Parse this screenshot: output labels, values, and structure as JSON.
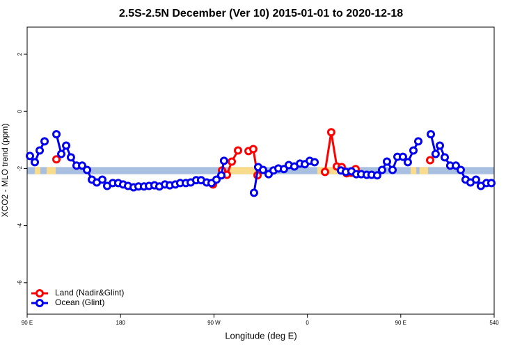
{
  "chart_data": {
    "type": "line",
    "title": "2.5S-2.5N December (Ver 10)   2015-01-01 to 2020-12-18",
    "xlabel": "Longitude (deg E)",
    "ylabel": "XCO2 - MLO trend (ppm)",
    "xlim": [
      90,
      540
    ],
    "xticks": [
      {
        "value": 90,
        "label": "90 E"
      },
      180,
      {
        "value": 270,
        "label": "90 W"
      },
      {
        "value": 360,
        "label": "0"
      },
      {
        "value": 450,
        "label": "90 E"
      },
      540
    ],
    "ylim": [
      -7.1,
      2.95
    ],
    "yticks": [
      2,
      0,
      -2,
      -4,
      -6
    ],
    "legend": "bottom-left",
    "band": [
      -2.2,
      -1.95
    ],
    "band_color": "#a8bfe0",
    "land_color": "#f8dc8c",
    "land_ranges": [
      [
        97.4,
        102.7
      ],
      [
        108.8,
        117.5
      ],
      [
        285.2,
        314.0
      ],
      [
        369.6,
        390.4
      ],
      [
        459.5,
        465.0
      ],
      [
        468.0,
        476.3
      ]
    ],
    "series": [
      {
        "name": "Land (Nadir&Glint)",
        "color": "#ff0000",
        "x": [
          118.2,
          null,
          269.1,
          277.8,
          282.5,
          287.2,
          293.2,
          null,
          303.3,
          307.9,
          312.0,
          null,
          377.0,
          383.0,
          388.4,
          393.1,
          397.8,
          402.5,
          406.5,
          null,
          478.3
        ],
        "values": [
          -1.68,
          null,
          -2.56,
          -2.07,
          -2.22,
          -1.76,
          -1.37,
          null,
          -1.39,
          -1.32,
          -2.24,
          null,
          -2.12,
          -0.73,
          -1.93,
          -1.95,
          -2.17,
          -2.15,
          -2.02,
          null,
          -1.71
        ]
      },
      {
        "name": "Ocean (Glint)",
        "color": "#0000ee",
        "x": [
          92.7,
          97.4,
          102.1,
          106.8,
          null,
          118.2,
          122.9,
          127.6,
          132.2,
          137.6,
          143.0,
          147.7,
          152.4,
          157.1,
          162.4,
          167.1,
          172.5,
          177.8,
          182.5,
          187.2,
          192.6,
          197.3,
          202.6,
          207.4,
          212.7,
          217.4,
          222.8,
          227.4,
          232.8,
          237.5,
          242.9,
          247.6,
          252.9,
          257.6,
          263.0,
          267.7,
          272.4,
          277.1,
          279.7,
          null,
          308.6,
          312.6,
          317.3,
          322.7,
          327.4,
          332.1,
          337.4,
          342.1,
          347.5,
          352.9,
          357.6,
          362.3,
          367.0,
          null,
          392.4,
          397.1,
          402.5,
          407.2,
          411.9,
          417.2,
          421.9,
          427.3,
          432.0,
          436.7,
          442.1,
          446.8,
          452.1,
          456.8,
          462.2,
          466.9,
          null,
          479.0,
          483.6,
          487.7,
          492.4,
          497.7,
          503.1,
          507.8,
          512.5,
          517.2,
          522.5,
          527.2,
          532.6,
          537.3
        ],
        "values": [
          -1.56,
          -1.78,
          -1.37,
          -1.05,
          null,
          -0.8,
          -1.49,
          -1.2,
          -1.61,
          -1.9,
          -1.9,
          -2.05,
          -2.39,
          -2.49,
          -2.39,
          -2.61,
          -2.51,
          -2.51,
          -2.56,
          -2.61,
          -2.66,
          -2.63,
          -2.63,
          -2.61,
          -2.59,
          -2.63,
          -2.56,
          -2.59,
          -2.56,
          -2.51,
          -2.51,
          -2.49,
          -2.41,
          -2.41,
          -2.49,
          -2.51,
          -2.39,
          -2.24,
          -1.73,
          null,
          -2.85,
          -1.95,
          -2.05,
          -2.2,
          -2.07,
          -2.0,
          -2.02,
          -1.88,
          -1.93,
          -1.83,
          -1.85,
          -1.73,
          -1.78,
          null,
          -2.07,
          -2.12,
          -2.1,
          -2.2,
          -2.2,
          -2.22,
          -2.22,
          -2.24,
          -2.05,
          -1.76,
          -2.05,
          -1.59,
          -1.59,
          -1.78,
          -1.37,
          -1.05,
          null,
          -0.8,
          -1.49,
          -1.2,
          -1.61,
          -1.9,
          -1.9,
          -2.05,
          -2.39,
          -2.49,
          -2.39,
          -2.61,
          -2.51,
          -2.51
        ]
      }
    ]
  }
}
